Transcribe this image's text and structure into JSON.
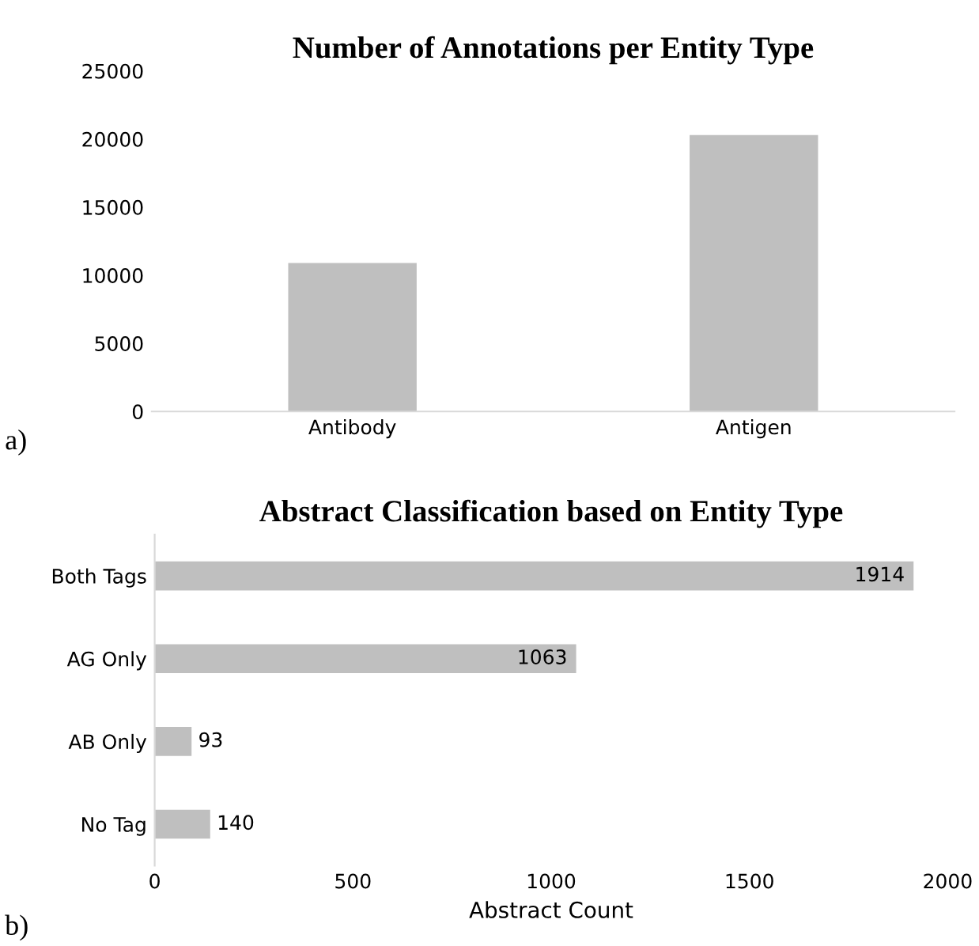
{
  "chart_data": [
    {
      "type": "bar",
      "title": "Number of Annotations per Entity Type",
      "categories": [
        "Antibody",
        "Antigen"
      ],
      "values": [
        10900,
        20300
      ],
      "color": "#bfbfbf",
      "ylim": [
        0,
        25000
      ],
      "yticks": [
        0,
        5000,
        10000,
        15000,
        20000,
        25000
      ],
      "grid": false,
      "annotations": [
        "a)"
      ]
    },
    {
      "type": "bar",
      "orientation": "horizontal",
      "title": "Abstract Classification based on Entity Type",
      "xlabel": "Abstract Count",
      "categories": [
        "Both Tags",
        "AG Only",
        "AB Only",
        "No Tag"
      ],
      "values": [
        1914,
        1063,
        93,
        140
      ],
      "color": "#bfbfbf",
      "xlim": [
        0,
        2000
      ],
      "xticks": [
        0,
        500,
        1000,
        1500,
        2000
      ],
      "grid": false,
      "data_labels": true,
      "annotations": [
        "b)"
      ]
    }
  ]
}
